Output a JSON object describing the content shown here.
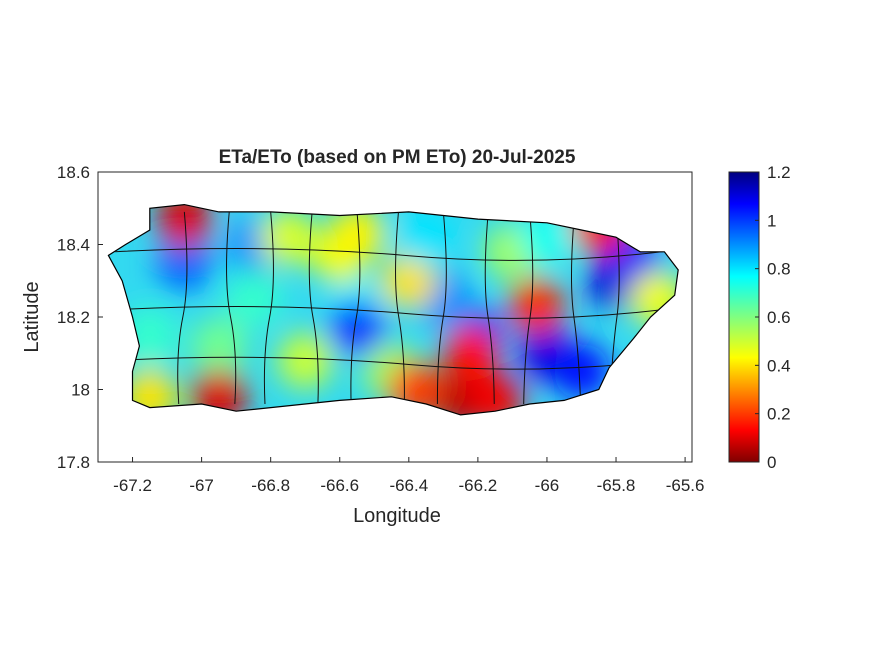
{
  "chart_data": {
    "type": "heatmap",
    "title": "ETa/ETo (based on PM ETo) 20-Jul-2025",
    "xlabel": "Longitude",
    "ylabel": "Latitude",
    "xlim": [
      -67.3,
      -65.58
    ],
    "ylim": [
      17.8,
      18.6
    ],
    "xticks": [
      -67.2,
      -67,
      -66.8,
      -66.6,
      -66.4,
      -66.2,
      -66,
      -65.8,
      -65.6
    ],
    "xtick_labels": [
      "-67.2",
      "-67",
      "-66.8",
      "-66.6",
      "-66.4",
      "-66.2",
      "-66",
      "-65.8",
      "-65.6"
    ],
    "yticks": [
      17.8,
      18,
      18.2,
      18.4,
      18.6
    ],
    "ytick_labels": [
      "17.8",
      "18",
      "18.2",
      "18.4",
      "18.6"
    ],
    "colorbar": {
      "colormap": "jet",
      "range": [
        0,
        1.2
      ],
      "ticks": [
        0,
        0.2,
        0.4,
        0.6,
        0.8,
        1,
        1.2
      ],
      "tick_labels": [
        "0",
        "0.2",
        "0.4",
        "0.6",
        "0.8",
        "1",
        "1.2"
      ],
      "placement": "right"
    },
    "grid": false,
    "region_outline": [
      [
        -67.27,
        18.37
      ],
      [
        -67.22,
        18.4
      ],
      [
        -67.15,
        18.44
      ],
      [
        -67.15,
        18.5
      ],
      [
        -67.05,
        18.51
      ],
      [
        -66.95,
        18.49
      ],
      [
        -66.8,
        18.49
      ],
      [
        -66.6,
        18.48
      ],
      [
        -66.4,
        18.49
      ],
      [
        -66.2,
        18.47
      ],
      [
        -66.0,
        18.46
      ],
      [
        -65.9,
        18.44
      ],
      [
        -65.8,
        18.42
      ],
      [
        -65.73,
        18.38
      ],
      [
        -65.66,
        18.38
      ],
      [
        -65.62,
        18.33
      ],
      [
        -65.63,
        18.26
      ],
      [
        -65.7,
        18.2
      ],
      [
        -65.75,
        18.14
      ],
      [
        -65.82,
        18.06
      ],
      [
        -65.85,
        18.0
      ],
      [
        -65.95,
        17.97
      ],
      [
        -66.05,
        17.96
      ],
      [
        -66.15,
        17.94
      ],
      [
        -66.25,
        17.93
      ],
      [
        -66.35,
        17.96
      ],
      [
        -66.45,
        17.98
      ],
      [
        -66.6,
        17.97
      ],
      [
        -66.8,
        17.95
      ],
      [
        -66.9,
        17.94
      ],
      [
        -67.0,
        17.96
      ],
      [
        -67.15,
        17.95
      ],
      [
        -67.2,
        17.97
      ],
      [
        -67.2,
        18.05
      ],
      [
        -67.18,
        18.12
      ],
      [
        -67.2,
        18.2
      ],
      [
        -67.23,
        18.3
      ],
      [
        -67.27,
        18.37
      ]
    ],
    "value_regions": [
      {
        "lon": -66.55,
        "lat": 18.22,
        "value": 0.78
      },
      {
        "lon": -67.05,
        "lat": 18.35,
        "value": 0.95
      },
      {
        "lon": -66.85,
        "lat": 18.4,
        "value": 0.9
      },
      {
        "lon": -65.8,
        "lat": 18.3,
        "value": 1.12
      },
      {
        "lon": -65.75,
        "lat": 18.35,
        "value": 1.05
      },
      {
        "lon": -66.0,
        "lat": 18.1,
        "value": 1.1
      },
      {
        "lon": -65.9,
        "lat": 18.05,
        "value": 1.05
      },
      {
        "lon": -66.2,
        "lat": 18.15,
        "value": 1.0
      },
      {
        "lon": -66.55,
        "lat": 18.17,
        "value": 1.0
      },
      {
        "lon": -66.3,
        "lat": 18.25,
        "value": 0.9
      },
      {
        "lon": -66.4,
        "lat": 18.3,
        "value": 0.4
      },
      {
        "lon": -66.6,
        "lat": 18.37,
        "value": 0.45
      },
      {
        "lon": -66.75,
        "lat": 18.42,
        "value": 0.48
      },
      {
        "lon": -66.55,
        "lat": 18.43,
        "value": 0.42
      },
      {
        "lon": -66.7,
        "lat": 18.08,
        "value": 0.5
      },
      {
        "lon": -66.45,
        "lat": 18.05,
        "value": 0.55
      },
      {
        "lon": -66.95,
        "lat": 18.12,
        "value": 0.62
      },
      {
        "lon": -67.15,
        "lat": 18.15,
        "value": 0.7
      },
      {
        "lon": -67.05,
        "lat": 18.47,
        "value": 0.1
      },
      {
        "lon": -66.95,
        "lat": 17.98,
        "value": 0.1
      },
      {
        "lon": -67.15,
        "lat": 17.98,
        "value": 0.4
      },
      {
        "lon": -66.25,
        "lat": 17.97,
        "value": 0.05
      },
      {
        "lon": -66.15,
        "lat": 17.97,
        "value": 0.12
      },
      {
        "lon": -66.38,
        "lat": 18.0,
        "value": 0.2
      },
      {
        "lon": -66.22,
        "lat": 18.1,
        "value": 0.15
      },
      {
        "lon": -66.03,
        "lat": 18.23,
        "value": 0.18
      },
      {
        "lon": -66.1,
        "lat": 18.38,
        "value": 0.55
      },
      {
        "lon": -65.85,
        "lat": 18.45,
        "value": 0.15
      },
      {
        "lon": -65.68,
        "lat": 18.25,
        "value": 0.45
      },
      {
        "lon": -66.85,
        "lat": 18.25,
        "value": 0.7
      },
      {
        "lon": -66.35,
        "lat": 18.42,
        "value": 0.8
      },
      {
        "lon": -66.0,
        "lat": 18.42,
        "value": 0.75
      }
    ]
  }
}
